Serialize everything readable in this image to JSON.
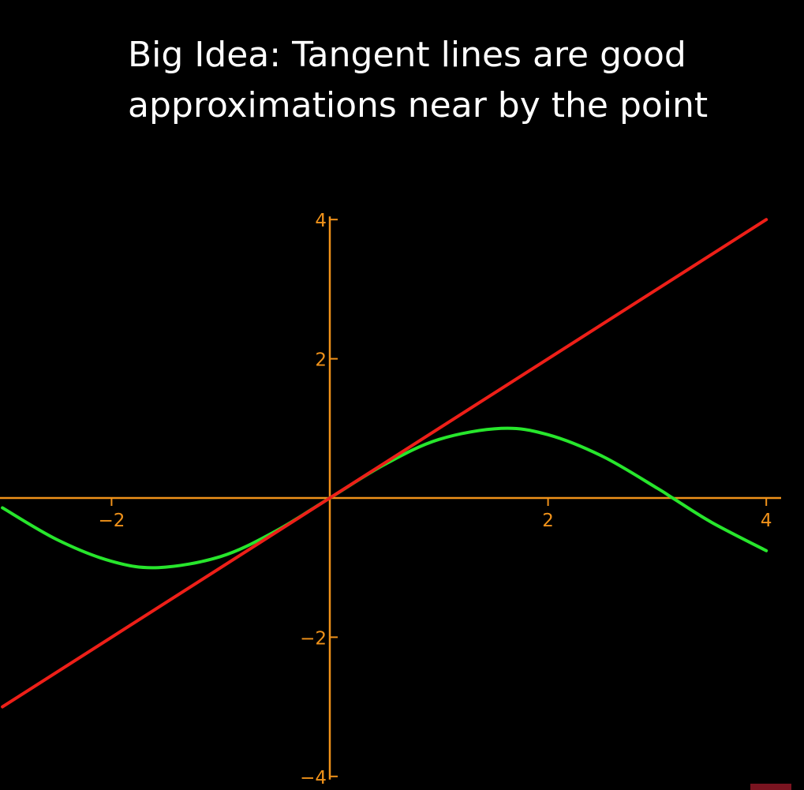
{
  "slide": {
    "title_line1": "Big Idea: Tangent lines are good",
    "title_line2": "approximations near by the point"
  },
  "colors": {
    "background": "#000000",
    "title": "#ffffff",
    "axes": "#f0921a",
    "curve": "#27e62c",
    "tangent": "#ee1f18"
  },
  "chart_data": {
    "type": "line",
    "title": "",
    "xlabel": "",
    "ylabel": "",
    "xlim": [
      -3,
      4.4
    ],
    "ylim": [
      -4,
      4
    ],
    "x_ticks": [
      -2,
      2,
      4
    ],
    "x_tick_labels": [
      "−2",
      "2",
      "4"
    ],
    "y_ticks": [
      -4,
      -2,
      2,
      4
    ],
    "y_tick_labels": [
      "−4",
      "−2",
      "2",
      "4"
    ],
    "grid": false,
    "legend": "none",
    "series": [
      {
        "color": "#27e62c",
        "x": [
          -3,
          -2.5,
          -2,
          -1.571,
          -1,
          -0.5,
          0,
          0.5,
          1,
          1.571,
          2,
          2.5,
          3,
          3.1416,
          3.5,
          4
        ],
        "y": [
          -0.141,
          -0.598,
          -0.909,
          -1.0,
          -0.841,
          -0.479,
          0,
          0.479,
          0.841,
          1.0,
          0.909,
          0.598,
          0.141,
          0,
          -0.351,
          -0.757
        ]
      },
      {
        "color": "#ee1f18",
        "x": [
          -3,
          4
        ],
        "y": [
          -3,
          4
        ]
      }
    ]
  }
}
